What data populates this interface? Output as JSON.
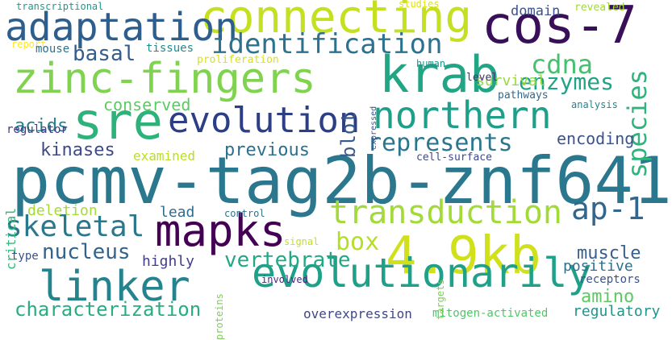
{
  "words": [
    {
      "id": "pcmv",
      "text": "pcmv-tag2b-znf641",
      "color": "#2a778e"
    },
    {
      "id": "connecting",
      "text": "connecting",
      "color": "#c5e021"
    },
    {
      "id": "cos7",
      "text": "cos-7",
      "color": "#3a0f5a"
    },
    {
      "id": "adaptation",
      "text": "adaptation",
      "color": "#2e5e8d"
    },
    {
      "id": "zinc",
      "text": "zinc-fingers",
      "color": "#7fd34e"
    },
    {
      "id": "krab",
      "text": "krab",
      "color": "#21a585"
    },
    {
      "id": "sre",
      "text": "sre",
      "color": "#2eb27c"
    },
    {
      "id": "evolution",
      "text": "evolution",
      "color": "#2b3e86"
    },
    {
      "id": "northern",
      "text": "northern",
      "color": "#1f9e89"
    },
    {
      "id": "identification",
      "text": "identification",
      "color": "#2c728e"
    },
    {
      "id": "cdna",
      "text": "cdna",
      "color": "#45c06f"
    },
    {
      "id": "basal",
      "text": "basal",
      "color": "#365c8d"
    },
    {
      "id": "enzymes",
      "text": "enzymes",
      "color": "#20a486"
    },
    {
      "id": "species",
      "text": "species",
      "color": "#2fb47c"
    },
    {
      "id": "mapks",
      "text": "mapks",
      "color": "#440154"
    },
    {
      "id": "kb",
      "text": "4.9kb",
      "color": "#d0e11c"
    },
    {
      "id": "linker",
      "text": "linker",
      "color": "#25838e"
    },
    {
      "id": "evolutionarily",
      "text": "evolutionarily",
      "color": "#1fa088"
    },
    {
      "id": "transduction",
      "text": "transduction",
      "color": "#a2da37"
    },
    {
      "id": "ap1",
      "text": "ap-1",
      "color": "#31668e"
    },
    {
      "id": "skeletal",
      "text": "skeletal",
      "color": "#2a788e"
    },
    {
      "id": "box",
      "text": "box",
      "color": "#b5de2b"
    },
    {
      "id": "represents",
      "text": "represents",
      "color": "#2b758e"
    },
    {
      "id": "nucleus",
      "text": "nucleus",
      "color": "#33638d"
    },
    {
      "id": "vertebrate",
      "text": "vertebrate",
      "color": "#22a884"
    },
    {
      "id": "muscle",
      "text": "muscle",
      "color": "#355f8d"
    },
    {
      "id": "characterization",
      "text": "characterization",
      "color": "#27ad81"
    },
    {
      "id": "amino",
      "text": "amino",
      "color": "#5ec962"
    },
    {
      "id": "kinases",
      "text": "kinases",
      "color": "#3e4a89"
    },
    {
      "id": "acids",
      "text": "acids",
      "color": "#277f8e"
    },
    {
      "id": "conserved",
      "text": "conserved",
      "color": "#5ec962"
    },
    {
      "id": "previous",
      "text": "previous",
      "color": "#2d708e"
    },
    {
      "id": "encoding",
      "text": "encoding",
      "color": "#3b528b"
    },
    {
      "id": "blot",
      "text": "blot",
      "color": "#38598c"
    },
    {
      "id": "highly",
      "text": "highly",
      "color": "#433e85"
    },
    {
      "id": "deletion",
      "text": "deletion",
      "color": "#a5db36"
    },
    {
      "id": "lead",
      "text": "lead",
      "color": "#2f6c8e"
    },
    {
      "id": "positive",
      "text": "positive",
      "color": "#2d708e"
    },
    {
      "id": "regulatory",
      "text": "regulatory",
      "color": "#1f968b"
    },
    {
      "id": "survival",
      "text": "survival",
      "color": "#98d83e"
    },
    {
      "id": "domain",
      "text": "domain",
      "color": "#3b528b"
    },
    {
      "id": "examined",
      "text": "examined",
      "color": "#b8de29"
    },
    {
      "id": "overexpression",
      "text": "overexpression",
      "color": "#404688"
    },
    {
      "id": "mitogen",
      "text": "mitogen-activated",
      "color": "#52c569"
    },
    {
      "id": "receptors",
      "text": "receptors",
      "color": "#3b528b"
    },
    {
      "id": "critical",
      "text": "critical",
      "color": "#35b779"
    },
    {
      "id": "type",
      "text": "type",
      "color": "#3b528b"
    },
    {
      "id": "control",
      "text": "control",
      "color": "#2c728e"
    },
    {
      "id": "signal",
      "text": "signal",
      "color": "#c2df23"
    },
    {
      "id": "involved",
      "text": "involved",
      "color": "#482878"
    },
    {
      "id": "proteins",
      "text": "proteins",
      "color": "#7ad151"
    },
    {
      "id": "targets",
      "text": "targets",
      "color": "#7ad151"
    },
    {
      "id": "cellsurface",
      "text": "cell-surface",
      "color": "#3e4a89"
    },
    {
      "id": "transcriptional",
      "text": "transcriptional",
      "color": "#1f988b"
    },
    {
      "id": "report",
      "text": "report",
      "color": "#fde725"
    },
    {
      "id": "mouse",
      "text": "mouse",
      "color": "#2c728e"
    },
    {
      "id": "tissues",
      "text": "tissues",
      "color": "#238a8d"
    },
    {
      "id": "proliferation",
      "text": "proliferation",
      "color": "#d8e219"
    },
    {
      "id": "level",
      "text": "level",
      "color": "#46327e"
    },
    {
      "id": "human",
      "text": "human",
      "color": "#1f968b"
    },
    {
      "id": "expressed",
      "text": "expressed",
      "color": "#3b528b"
    },
    {
      "id": "pathways",
      "text": "pathways",
      "color": "#31688e"
    },
    {
      "id": "analysis",
      "text": "analysis",
      "color": "#26828e"
    },
    {
      "id": "regulator",
      "text": "regulator",
      "color": "#453781"
    },
    {
      "id": "studies",
      "text": "studies",
      "color": "#dde318"
    },
    {
      "id": "revealed",
      "text": "revealed",
      "color": "#a0da39"
    }
  ]
}
